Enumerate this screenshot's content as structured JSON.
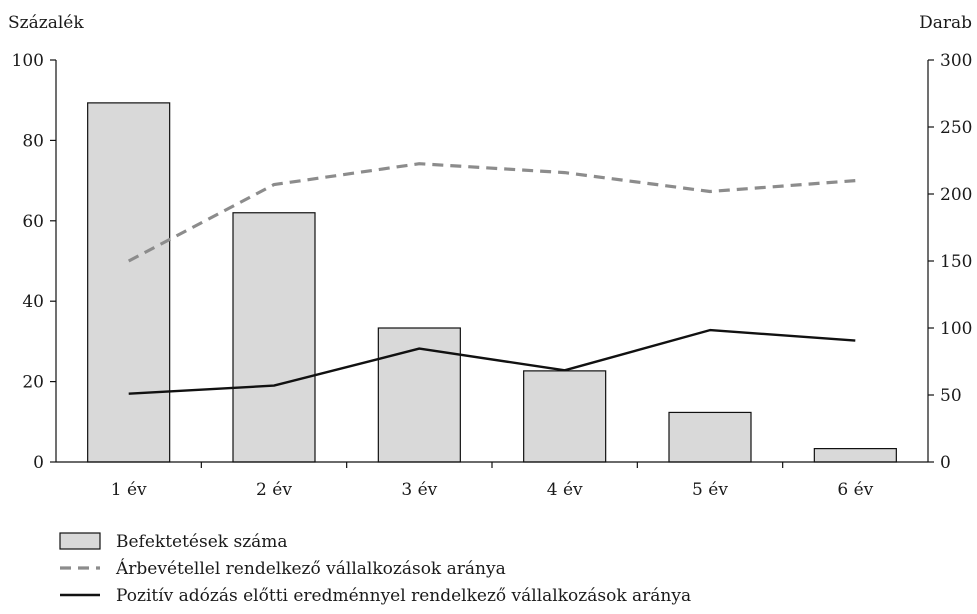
{
  "chart_data": {
    "type": "bar",
    "categories": [
      "1 év",
      "2 év",
      "3 év",
      "4 év",
      "5 év",
      "6 év"
    ],
    "y_left": {
      "label": "Százalék",
      "ylim": [
        0,
        100
      ],
      "ticks": [
        0,
        20,
        40,
        60,
        80,
        100
      ]
    },
    "y_right": {
      "label": "Darab",
      "ylim": [
        0,
        300
      ],
      "ticks": [
        0,
        50,
        100,
        150,
        200,
        250,
        300
      ]
    },
    "series": [
      {
        "name": "Befektetések száma",
        "kind": "bar",
        "axis": "right",
        "color": "#d9d9d9",
        "values": [
          268,
          186,
          100,
          68,
          37,
          10
        ]
      },
      {
        "name": "Árbevétellel rendelkező vállalkozások aránya",
        "kind": "line",
        "axis": "left",
        "style": "dashed",
        "color": "#8c8c8c",
        "values": [
          50,
          69,
          74.2,
          72,
          67.3,
          70
        ]
      },
      {
        "name": "Pozitív adózás előtti eredménnyel rendelkező vállalkozások aránya",
        "kind": "line",
        "axis": "left",
        "style": "solid",
        "color": "#111111",
        "values": [
          17,
          19,
          28.2,
          22.8,
          32.8,
          30.2
        ]
      }
    ],
    "grid": false,
    "legend_position": "bottom-left"
  }
}
